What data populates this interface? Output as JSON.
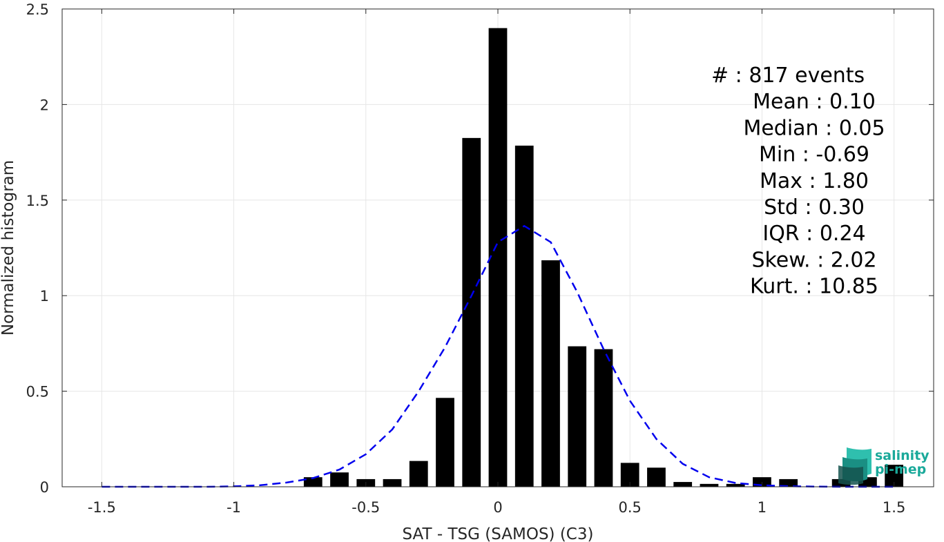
{
  "chart_data": {
    "type": "bar",
    "xlabel": "SAT - TSG (SAMOS) (C3)",
    "ylabel": "Normalized histogram",
    "xlim": [
      -1.65,
      1.65
    ],
    "ylim": [
      0,
      2.5
    ],
    "xticks": [
      -1.5,
      -1,
      -0.5,
      0,
      0.5,
      1,
      1.5
    ],
    "xtick_labels": [
      "-1.5",
      "-1",
      "-0.5",
      "0",
      "0.5",
      "1",
      "1.5"
    ],
    "yticks": [
      0,
      0.5,
      1,
      1.5,
      2,
      2.5
    ],
    "ytick_labels": [
      "0",
      "0.5",
      "1",
      "1.5",
      "2",
      "2.5"
    ],
    "grid": true,
    "bar_width": 0.07,
    "bar_color": "#000000",
    "bars": {
      "x": [
        -0.7,
        -0.6,
        -0.5,
        -0.4,
        -0.3,
        -0.2,
        -0.1,
        0.0,
        0.1,
        0.2,
        0.3,
        0.4,
        0.5,
        0.6,
        0.7,
        0.8,
        0.9,
        1.0,
        1.1,
        1.3,
        1.4,
        1.5
      ],
      "values": [
        0.05,
        0.075,
        0.04,
        0.04,
        0.135,
        0.465,
        1.825,
        2.4,
        1.785,
        1.185,
        0.735,
        0.72,
        0.125,
        0.1,
        0.025,
        0.015,
        0.015,
        0.05,
        0.04,
        0.04,
        0.05,
        0.115
      ]
    },
    "fit_curve": {
      "style": "dashed",
      "color": "#0000ee",
      "x": [
        -1.5,
        -1.4,
        -1.3,
        -1.2,
        -1.1,
        -1.0,
        -0.9,
        -0.8,
        -0.7,
        -0.6,
        -0.5,
        -0.4,
        -0.3,
        -0.2,
        -0.1,
        0.0,
        0.1,
        0.2,
        0.3,
        0.4,
        0.5,
        0.6,
        0.7,
        0.8,
        0.9,
        1.0,
        1.1,
        1.2,
        1.3,
        1.4,
        1.5
      ],
      "y": [
        0.0,
        0.0,
        0.0,
        0.0,
        0.0,
        0.002,
        0.008,
        0.022,
        0.045,
        0.09,
        0.17,
        0.3,
        0.5,
        0.73,
        1.0,
        1.28,
        1.365,
        1.28,
        1.02,
        0.72,
        0.45,
        0.25,
        0.12,
        0.05,
        0.02,
        0.008,
        0.003,
        0.001,
        0.0,
        0.0,
        0.0
      ]
    },
    "stats": [
      {
        "label": "#",
        "sep": ": ",
        "value": "817 events"
      },
      {
        "label": "Mean",
        "sep": " : ",
        "value": "0.10"
      },
      {
        "label": "Median",
        "sep": " : ",
        "value": "0.05"
      },
      {
        "label": "Min",
        "sep": " : ",
        "value": "-0.69"
      },
      {
        "label": "Max",
        "sep": " : ",
        "value": "1.80"
      },
      {
        "label": "Std",
        "sep": " : ",
        "value": "0.30"
      },
      {
        "label": "IQR",
        "sep": " : ",
        "value": "0.24"
      },
      {
        "label": "Skew.",
        "sep": " : ",
        "value": "2.02"
      },
      {
        "label": "Kurt.",
        "sep": " : ",
        "value": "10.85"
      }
    ]
  },
  "logo": {
    "line1": "salinity",
    "line2": "pi-mep",
    "colors": {
      "teal": "#1aa99a",
      "dark": "#15534f"
    }
  }
}
